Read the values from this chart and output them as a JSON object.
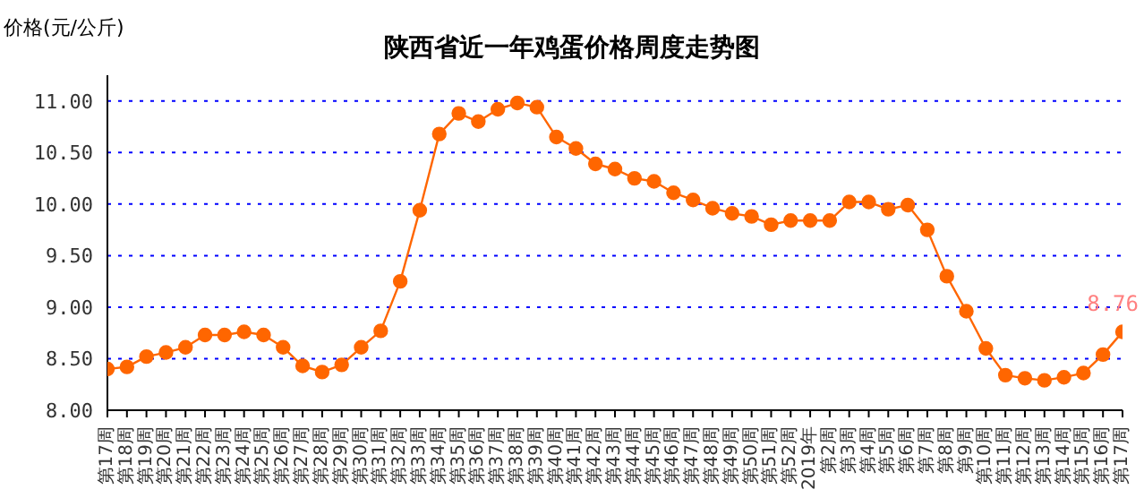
{
  "chart_data": {
    "type": "line",
    "title": "陕西省近一年鸡蛋价格周度走势图",
    "ylabel": "价格(元/公斤)",
    "categories": [
      "第17周",
      "第18周",
      "第19周",
      "第20周",
      "第21周",
      "第22周",
      "第23周",
      "第24周",
      "第25周",
      "第26周",
      "第27周",
      "第28周",
      "第29周",
      "第30周",
      "第31周",
      "第32周",
      "第33周",
      "第34周",
      "第35周",
      "第36周",
      "第37周",
      "第38周",
      "第39周",
      "第40周",
      "第41周",
      "第42周",
      "第43周",
      "第44周",
      "第45周",
      "第46周",
      "第47周",
      "第48周",
      "第49周",
      "第50周",
      "第51周",
      "第52周",
      "2019年",
      "第2周",
      "第3周",
      "第4周",
      "第5周",
      "第6周",
      "第7周",
      "第8周",
      "第9周",
      "第10周",
      "第11周",
      "第12周",
      "第13周",
      "第14周",
      "第15周",
      "第16周",
      "第17周"
    ],
    "series": [
      {
        "color": "#ff6600",
        "values": [
          8.4,
          8.42,
          8.52,
          8.56,
          8.61,
          8.73,
          8.73,
          8.76,
          8.73,
          8.61,
          8.43,
          8.37,
          8.44,
          8.61,
          8.77,
          9.25,
          9.94,
          10.68,
          10.88,
          10.8,
          10.92,
          10.98,
          10.94,
          10.65,
          10.54,
          10.39,
          10.34,
          10.25,
          10.22,
          10.11,
          10.04,
          9.96,
          9.91,
          9.88,
          9.8,
          9.84,
          9.84,
          9.84,
          10.02,
          10.02,
          9.95,
          9.99,
          9.75,
          9.3,
          8.96,
          8.6,
          8.34,
          8.31,
          8.29,
          8.32,
          8.36,
          8.54,
          8.76
        ],
        "value_labels": [
          null,
          null,
          null,
          null,
          null,
          null,
          null,
          null,
          null,
          null,
          null,
          null,
          null,
          null,
          null,
          null,
          null,
          null,
          null,
          null,
          null,
          null,
          null,
          null,
          null,
          null,
          null,
          null,
          null,
          null,
          null,
          null,
          null,
          null,
          null,
          null,
          null,
          null,
          null,
          null,
          null,
          null,
          null,
          null,
          null,
          null,
          null,
          null,
          null,
          null,
          null,
          null,
          "8.76"
        ]
      }
    ],
    "ylim": [
      8,
      11.25
    ],
    "yticks": [
      {
        "value": 8,
        "label": "8.00"
      },
      {
        "value": 8.5,
        "label": "8.50"
      },
      {
        "value": 9,
        "label": "9.00"
      },
      {
        "value": 9.5,
        "label": "9.50"
      },
      {
        "value": 10,
        "label": "10.00"
      },
      {
        "value": 10.5,
        "label": "10.50"
      },
      {
        "value": 11,
        "label": "11.00"
      }
    ],
    "grid": "y",
    "marker": "circle",
    "line_style": "solid"
  }
}
